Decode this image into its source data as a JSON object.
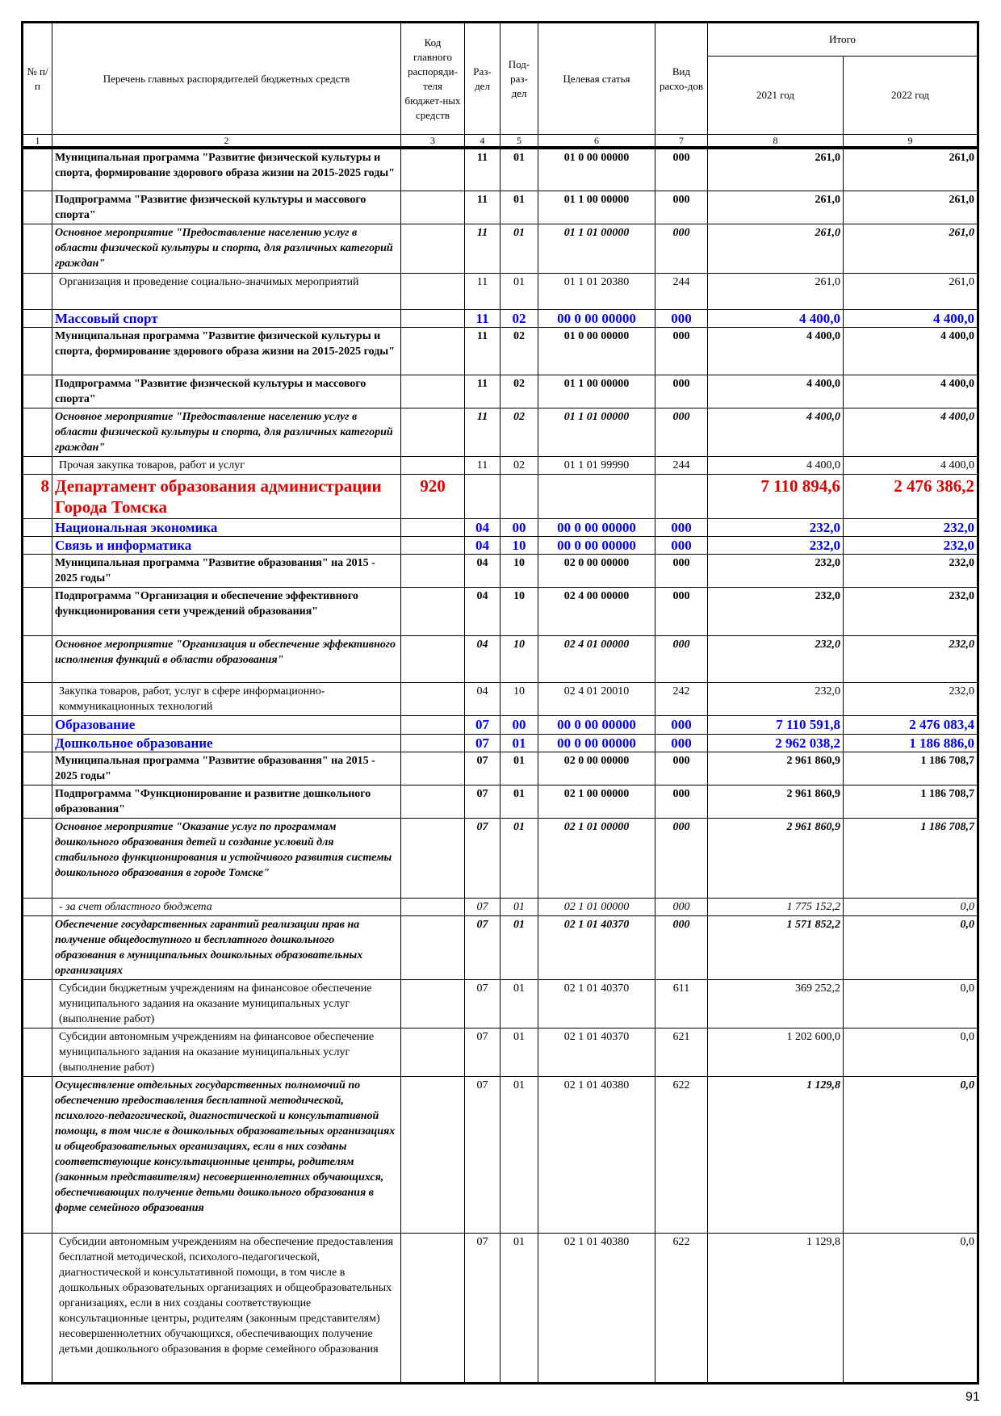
{
  "header": {
    "no": "№ п/п",
    "name": "Перечень главных распорядителей бюджетных средств",
    "code": "Код главного распоряди-теля бюджет-ных средств",
    "razdel": "Раз-дел",
    "podrazdel": "Под-раз-дел",
    "article": "Целевая статья",
    "vid": "Вид расхо-дов",
    "total": "Итого",
    "y2021": "2021 год",
    "y2022": "2022 год",
    "col_numbers": [
      "1",
      "2",
      "3",
      "4",
      "5",
      "6",
      "7",
      "8",
      "9"
    ]
  },
  "rows": [
    {
      "style": "b",
      "h": 53,
      "no": "",
      "name": "Муниципальная программа \"Развитие физической культуры и спорта, формирование здорового образа жизни на 2015-2025 годы\"",
      "code": "",
      "rz": "11",
      "prz": "01",
      "article": "01 0 00 00000",
      "vid": "000",
      "v2021": "261,0",
      "v2022": "261,0"
    },
    {
      "style": "b",
      "h": 39,
      "no": "",
      "name": "Подпрограмма \"Развитие физической культуры и массового спорта\"",
      "code": "",
      "rz": "11",
      "prz": "01",
      "article": "01 1 00 00000",
      "vid": "000",
      "v2021": "261,0",
      "v2022": "261,0"
    },
    {
      "style": "bi",
      "h": 61,
      "no": "",
      "name": "Основное мероприятие \"Предоставление населению услуг в области физической культуры и спорта, для различных категорий граждан\"",
      "code": "",
      "rz": "11",
      "prz": "01",
      "article": "01 1 01 00000",
      "vid": "000",
      "v2021": "261,0",
      "v2022": "261,0"
    },
    {
      "style": "n",
      "h": 45,
      "no": "",
      "name": "Организация и проведение социально-значимых мероприятий",
      "code": "",
      "rz": "11",
      "prz": "01",
      "article": "01 1 01 20380",
      "vid": "244",
      "v2021": "261,0",
      "v2022": "261,0"
    },
    {
      "style": "blue",
      "h": 20,
      "no": "",
      "name": "Массовый спорт",
      "code": "",
      "rz": "11",
      "prz": "02",
      "article": "00 0 00 00000",
      "vid": "000",
      "v2021": "4 400,0",
      "v2022": "4 400,0"
    },
    {
      "style": "b",
      "h": 59,
      "no": "",
      "name": "Муниципальная программа \"Развитие физической культуры и спорта, формирование здорового образа жизни на 2015-2025 годы\"",
      "code": "",
      "rz": "11",
      "prz": "02",
      "article": "01 0 00 00000",
      "vid": "000",
      "v2021": "4 400,0",
      "v2022": "4 400,0"
    },
    {
      "style": "b",
      "h": 38,
      "no": "",
      "name": "Подпрограмма \"Развитие физической культуры и массового спорта\"",
      "code": "",
      "rz": "11",
      "prz": "02",
      "article": "01 1 00 00000",
      "vid": "000",
      "v2021": "4 400,0",
      "v2022": "4 400,0"
    },
    {
      "style": "bi",
      "h": 60,
      "no": "",
      "name": "Основное мероприятие \"Предоставление населению услуг в области физической культуры и спорта, для различных категорий граждан\"",
      "code": "",
      "rz": "11",
      "prz": "02",
      "article": "01 1 01 00000",
      "vid": "000",
      "v2021": "4 400,0",
      "v2022": "4 400,0"
    },
    {
      "style": "n",
      "h": 20,
      "no": "",
      "name": "Прочая закупка товаров, работ и услуг",
      "code": "",
      "rz": "11",
      "prz": "02",
      "article": "01 1 01 99990",
      "vid": "244",
      "v2021": "4 400,0",
      "v2022": "4 400,0"
    },
    {
      "style": "red",
      "h": 53,
      "no": "8",
      "name": "Департамент образования администрации Города Томска",
      "code": "920",
      "rz": "",
      "prz": "",
      "article": "",
      "vid": "",
      "v2021": "7 110 894,6",
      "v2022": "2 476 386,2"
    },
    {
      "style": "blue",
      "h": 22,
      "no": "",
      "name": "Национальная экономика",
      "code": "",
      "rz": "04",
      "prz": "00",
      "article": "00 0 00 00000",
      "vid": "000",
      "v2021": "232,0",
      "v2022": "232,0"
    },
    {
      "style": "blue",
      "h": 22,
      "no": "",
      "name": "Связь и информатика",
      "code": "",
      "rz": "04",
      "prz": "10",
      "article": "00 0 00 00000",
      "vid": "000",
      "v2021": "232,0",
      "v2022": "232,0"
    },
    {
      "style": "b",
      "h": 39,
      "no": "",
      "name": "Муниципальная программа \"Развитие образования\" на 2015 - 2025 годы\"",
      "code": "",
      "rz": "04",
      "prz": "10",
      "article": "02 0 00 00000",
      "vid": "000",
      "v2021": "232,0",
      "v2022": "232,0"
    },
    {
      "style": "b",
      "h": 60,
      "no": "",
      "name": "Подпрограмма \"Организация и обеспечение эффективного функционирования сети учреждений образования\"",
      "code": "",
      "rz": "04",
      "prz": "10",
      "article": "02 4 00 00000",
      "vid": "000",
      "v2021": "232,0",
      "v2022": "232,0"
    },
    {
      "style": "bi",
      "h": 58,
      "no": "",
      "name": "Основное мероприятие \"Организация и обеспечение эффективного исполнения функций в области образования\"",
      "code": "",
      "rz": "04",
      "prz": "10",
      "article": "02 4 01 00000",
      "vid": "000",
      "v2021": "232,0",
      "v2022": "232,0"
    },
    {
      "style": "n",
      "h": 40,
      "no": "",
      "name": "Закупка товаров, работ, услуг в сфере информационно-коммуникационных технологий",
      "code": "",
      "rz": "04",
      "prz": "10",
      "article": "02 4 01 20010",
      "vid": "242",
      "v2021": "232,0",
      "v2022": "232,0"
    },
    {
      "style": "blue",
      "h": 23,
      "no": "",
      "name": "Образование",
      "code": "",
      "rz": "07",
      "prz": "00",
      "article": "00 0 00 00000",
      "vid": "000",
      "v2021": "7 110 591,8",
      "v2022": "2 476 083,4"
    },
    {
      "style": "blue",
      "h": 21,
      "no": "",
      "name": "Дошкольное образование",
      "code": "",
      "rz": "07",
      "prz": "01",
      "article": "00 0 00 00000",
      "vid": "000",
      "v2021": "2 962 038,2",
      "v2022": "1 186 886,0"
    },
    {
      "style": "b",
      "h": 39,
      "no": "",
      "name": "Муниципальная программа \"Развитие образования\" на 2015 - 2025 годы\"",
      "code": "",
      "rz": "07",
      "prz": "01",
      "article": "02 0 00 00000",
      "vid": "000",
      "v2021": "2 961 860,9",
      "v2022": "1 186 708,7"
    },
    {
      "style": "b",
      "h": 39,
      "no": "",
      "name": "Подпрограмма \"Функционирование и развитие дошкольного образования\"",
      "code": "",
      "rz": "07",
      "prz": "01",
      "article": "02 1 00 00000",
      "vid": "000",
      "v2021": "2 961 860,9",
      "v2022": "1 186 708,7"
    },
    {
      "style": "bi",
      "h": 99,
      "no": "",
      "name": "Основное мероприятие \"Оказание услуг по программам дошкольного образования детей и создание условий для стабильного функционирования и устойчивого развития системы дошкольного образования в городе Томске\"",
      "code": "",
      "rz": "07",
      "prz": "01",
      "article": "02 1 01 00000",
      "vid": "000",
      "v2021": "2 961 860,9",
      "v2022": "1 186 708,7"
    },
    {
      "style": "i",
      "h": 20,
      "no": "",
      "name": "- за счет областного бюджета",
      "code": "",
      "rz": "07",
      "prz": "01",
      "article": "02 1 01 00000",
      "vid": "000",
      "v2021": "1 775 152,2",
      "v2022": "0,0"
    },
    {
      "style": "bi",
      "h": 77,
      "no": "",
      "name": "Обеспечение государственных гарантий реализации прав на получение общедоступного и бесплатного дошкольного образования в муниципальных дошкольных образовательных организациях",
      "code": "",
      "rz": "07",
      "prz": "01",
      "article": "02 1 01 40370",
      "vid": "000",
      "v2021": "1 571 852,2",
      "v2022": "0,0"
    },
    {
      "style": "n",
      "h": 58,
      "no": "",
      "name": "Субсидии бюджетным учреждениям на финансовое обеспечение муниципального задания на оказание муниципальных услуг (выполнение работ)",
      "code": "",
      "rz": "07",
      "prz": "01",
      "article": "02 1 01 40370",
      "vid": "611",
      "v2021": "369 252,2",
      "v2022": "0,0"
    },
    {
      "style": "n",
      "h": 59,
      "no": "",
      "name": "Субсидии автономным учреждениям на финансовое обеспечение муниципального задания на оказание муниципальных услуг (выполнение работ)",
      "code": "",
      "rz": "07",
      "prz": "01",
      "article": "02 1 01 40370",
      "vid": "621",
      "v2021": "1 202 600,0",
      "v2022": "0,0"
    },
    {
      "style": "bi",
      "codes": "n",
      "h": 194,
      "no": "",
      "name": "Осуществление отдельных государственных полномочий по обеспечению предоставления бесплатной методической, психолого-педагогической, диагностической и консультативной помощи, в том числе в дошкольных образовательных организациях и общеобразовательных организациях, если в них созданы соответствующие консультационные центры, родителям (законным представителям) несовершеннолетних обучающихся, обеспечивающих получение детьми дошкольного образования в форме семейного образования",
      "code": "",
      "rz": "07",
      "prz": "01",
      "article": "02 1 01 40380",
      "vid": "622",
      "v2021": "1 129,8",
      "v2022": "0,0"
    },
    {
      "style": "n",
      "h": 186,
      "no": "",
      "name": "Субсидии автономным учреждениям на обеспечение предоставления бесплатной методической, психолого-педагогической, диагностической и консультативной помощи, в том числе в дошкольных образовательных организациях и общеобразовательных организациях, если в них созданы соответствующие консультационные центры, родителям (законным представителям) несовершеннолетних обучающихся, обеспечивающих получение детьми дошкольного образования в форме семейного образования",
      "code": "",
      "rz": "07",
      "prz": "01",
      "article": "02 1 01 40380",
      "vid": "622",
      "v2021": "1 129,8",
      "v2022": "0,0"
    }
  ],
  "page_number": "91"
}
